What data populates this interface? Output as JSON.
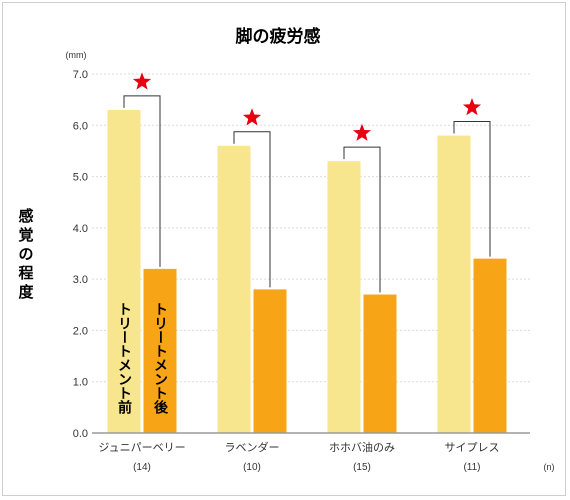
{
  "chart_data": {
    "type": "bar",
    "title": "脚の疲労感",
    "ylabel": "感覚の程度",
    "y_unit": "(mm)",
    "x_unit": "(n)",
    "ylim": [
      0,
      7
    ],
    "yticks": [
      "0.0",
      "1.0",
      "2.0",
      "3.0",
      "4.0",
      "5.0",
      "6.0",
      "7.0"
    ],
    "categories": [
      "ジュニパーベリー",
      "ラベンダー",
      "ホホバ油のみ",
      "サイプレス"
    ],
    "counts": [
      "(14)",
      "(10)",
      "(15)",
      "(11)"
    ],
    "series": [
      {
        "name": "トリートメント前",
        "values": [
          6.3,
          5.6,
          5.3,
          5.8
        ]
      },
      {
        "name": "トリートメント後",
        "values": [
          3.2,
          2.8,
          2.7,
          3.4
        ]
      }
    ],
    "significance": [
      "★",
      "★",
      "★",
      "★"
    ],
    "grid": "horizontal",
    "colors": {
      "before": "#f8e68e",
      "after": "#f7a416",
      "star": "#e60012",
      "grid": "#dcdcdc",
      "axis": "#9a9a9a",
      "bracket": "#333333"
    }
  }
}
